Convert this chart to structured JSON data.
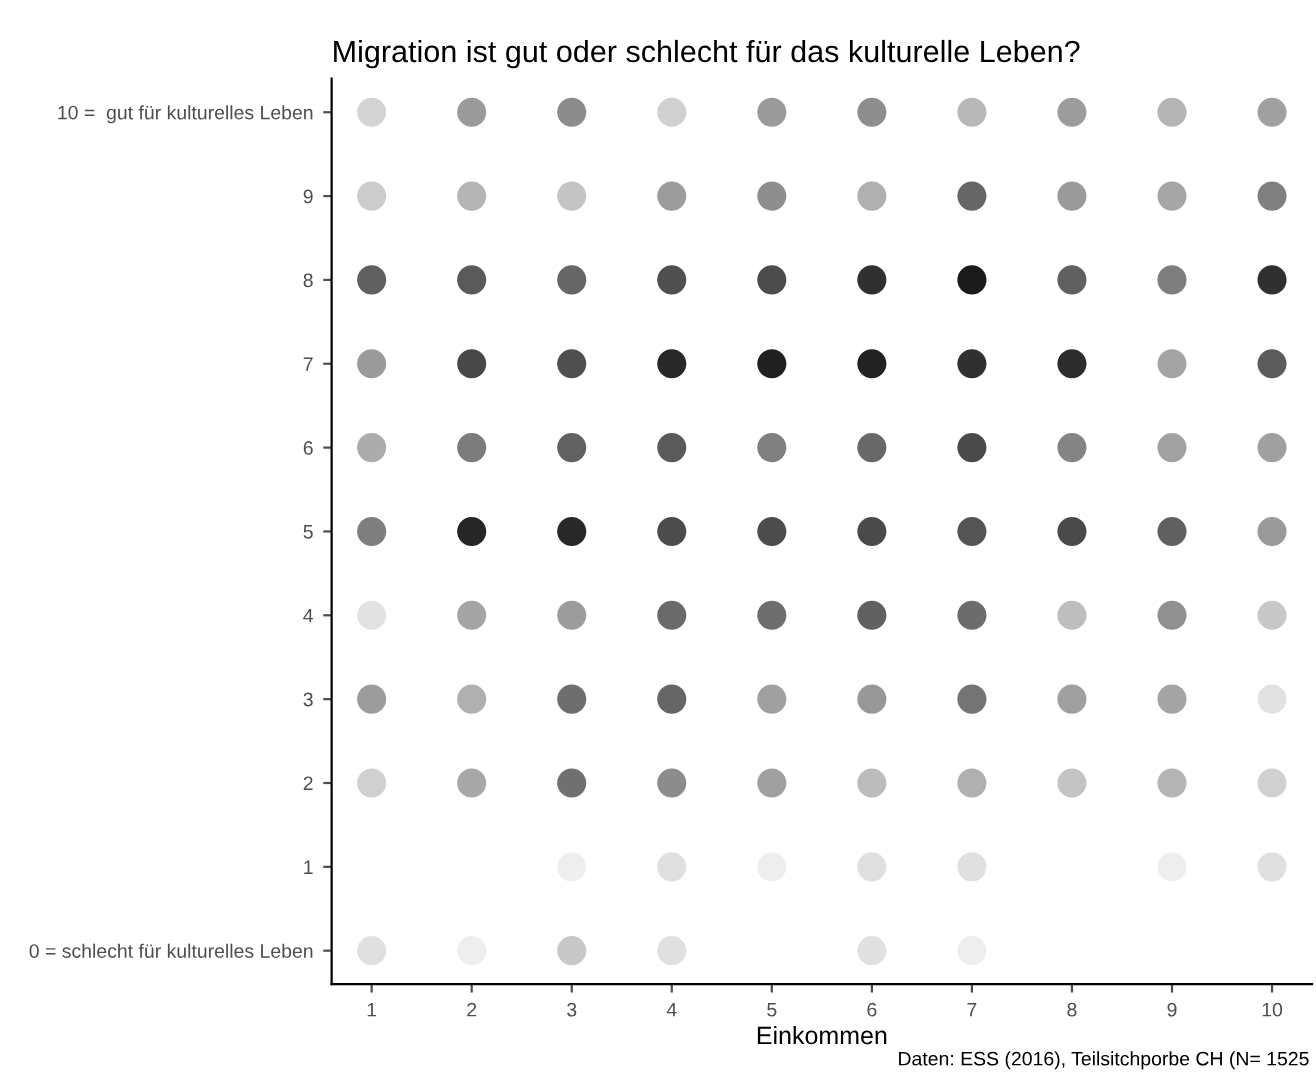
{
  "chart_data": {
    "type": "scatter",
    "title": "Migration ist gut oder schlecht für das kulturelle Leben?",
    "xlabel": "Einkommen",
    "annotations": [
      "Daten: ESS (2016), Teilsitchporbe CH (N= 1525"
    ],
    "marker": "circle",
    "grid": false,
    "legend": false,
    "xlim": [
      0.6,
      10.4
    ],
    "ylim": [
      -0.4,
      10.4
    ],
    "xticks": [
      1,
      2,
      3,
      4,
      5,
      6,
      7,
      8,
      9,
      10
    ],
    "yticks": [
      {
        "value": 0,
        "label": "0 = schlecht für kulturelles Leben"
      },
      1,
      2,
      3,
      4,
      5,
      6,
      7,
      8,
      9,
      {
        "value": 10,
        "label": "10 =  gut für kulturelles Leben"
      }
    ],
    "series": [
      {
        "x": [
          1,
          2,
          3,
          4,
          5,
          6,
          7,
          8,
          9,
          10,
          1,
          2,
          3,
          4,
          5,
          6,
          7,
          8,
          9,
          10,
          1,
          2,
          3,
          4,
          5,
          6,
          7,
          8,
          9,
          10,
          1,
          2,
          3,
          4,
          5,
          6,
          7,
          8,
          9,
          10,
          1,
          2,
          3,
          4,
          5,
          6,
          7,
          8,
          9,
          10,
          1,
          2,
          3,
          4,
          5,
          6,
          7,
          8,
          9,
          10,
          1,
          2,
          3,
          4,
          5,
          6,
          7,
          8,
          9,
          10,
          1,
          2,
          3,
          4,
          5,
          6,
          7,
          8,
          9,
          10,
          1,
          2,
          3,
          4,
          5,
          6,
          7,
          8,
          9,
          10,
          3,
          4,
          5,
          6,
          7,
          9,
          10,
          1,
          2,
          3,
          4,
          6,
          7
        ],
        "values": [
          10,
          10,
          10,
          10,
          10,
          10,
          10,
          10,
          10,
          10,
          9,
          9,
          9,
          9,
          9,
          9,
          9,
          9,
          9,
          9,
          8,
          8,
          8,
          8,
          8,
          8,
          8,
          8,
          8,
          8,
          7,
          7,
          7,
          7,
          7,
          7,
          7,
          7,
          7,
          7,
          6,
          6,
          6,
          6,
          6,
          6,
          6,
          6,
          6,
          6,
          5,
          5,
          5,
          5,
          5,
          5,
          5,
          5,
          5,
          5,
          4,
          4,
          4,
          4,
          4,
          4,
          4,
          4,
          4,
          4,
          3,
          3,
          3,
          3,
          3,
          3,
          3,
          3,
          3,
          3,
          2,
          2,
          2,
          2,
          2,
          2,
          2,
          2,
          2,
          2,
          1,
          1,
          1,
          1,
          1,
          1,
          1,
          0,
          0,
          0,
          0,
          0,
          0
        ],
        "colors": [
          "#d4d4d4",
          "#9a9a9a",
          "#8c8c8c",
          "#d0d0d0",
          "#9a9a9a",
          "#8e8e8e",
          "#b8b8b8",
          "#9c9c9c",
          "#b4b4b4",
          "#a0a0a0",
          "#cccccc",
          "#b4b4b4",
          "#c4c4c4",
          "#9c9c9c",
          "#8e8e8e",
          "#b0b0b0",
          "#666666",
          "#9a9a9a",
          "#a6a6a6",
          "#808080",
          "#606060",
          "#5a5a5a",
          "#666666",
          "#505050",
          "#4c4c4c",
          "#303030",
          "#1a1a1a",
          "#606060",
          "#7e7e7e",
          "#303030",
          "#9a9a9a",
          "#484848",
          "#505050",
          "#282828",
          "#202020",
          "#222222",
          "#303030",
          "#2c2c2c",
          "#a4a4a4",
          "#5c5c5c",
          "#acacac",
          "#7c7c7c",
          "#626262",
          "#5a5a5a",
          "#808080",
          "#686868",
          "#4a4a4a",
          "#848484",
          "#a2a2a2",
          "#a0a0a0",
          "#7e7e7e",
          "#262626",
          "#282828",
          "#4c4c4c",
          "#4c4c4c",
          "#4a4a4a",
          "#545454",
          "#4a4a4a",
          "#606060",
          "#9a9a9a",
          "#e2e2e2",
          "#a4a4a4",
          "#9c9c9c",
          "#6a6a6a",
          "#6e6e6e",
          "#606060",
          "#6c6c6c",
          "#bebebe",
          "#909090",
          "#c8c8c8",
          "#9c9c9c",
          "#b0b0b0",
          "#6e6e6e",
          "#666666",
          "#a0a0a0",
          "#989898",
          "#747474",
          "#a0a0a0",
          "#a4a4a4",
          "#e2e2e2",
          "#d0d0d0",
          "#a8a8a8",
          "#707070",
          "#8c8c8c",
          "#a0a0a0",
          "#bcbcbc",
          "#b0b0b0",
          "#c4c4c4",
          "#b4b4b4",
          "#d0d0d0",
          "#eeeeee",
          "#e0e0e0",
          "#eeeeee",
          "#e0e0e0",
          "#e0e0e0",
          "#eeeeee",
          "#e0e0e0",
          "#e0e0e0",
          "#eeeeee",
          "#c8c8c8",
          "#e0e0e0",
          "#e0e0e0",
          "#eeeeee"
        ]
      }
    ]
  }
}
